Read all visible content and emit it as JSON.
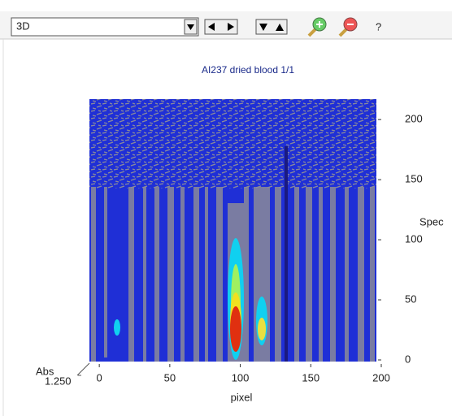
{
  "toolbar": {
    "view_select": "3D",
    "help": "?"
  },
  "chart_data": {
    "type": "heatmap",
    "title": "AI237  dried blood 1/1",
    "x_label": "pixel",
    "y_label": "Spec",
    "z_label": "Abs",
    "z_tick": {
      "value": 1.25,
      "label": "1.250"
    },
    "xlim": [
      -7,
      200
    ],
    "xticks": [
      0,
      50,
      100,
      150,
      200
    ],
    "ylim": [
      0,
      217
    ],
    "yticks": [
      0,
      50,
      100,
      150,
      200
    ]
  }
}
